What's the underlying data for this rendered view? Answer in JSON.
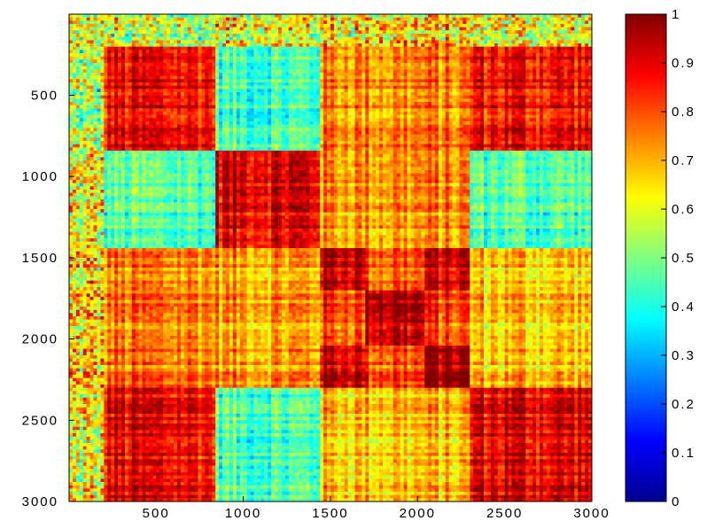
{
  "chart_data": {
    "type": "heatmap",
    "title": "",
    "xlabel": "",
    "ylabel": "",
    "xlim": [
      1,
      3000
    ],
    "ylim": [
      1,
      3000
    ],
    "y_reversed": true,
    "x_ticks": [
      "500",
      "1000",
      "1500",
      "2000",
      "2500",
      "3000"
    ],
    "y_ticks": [
      "500",
      "1000",
      "1500",
      "2000",
      "2500",
      "3000"
    ],
    "colormap": "jet",
    "colorbar": {
      "range": [
        0,
        1
      ],
      "ticks": [
        "0",
        "0.1",
        "0.2",
        "0.3",
        "0.4",
        "0.5",
        "0.6",
        "0.7",
        "0.8",
        "0.9",
        "1"
      ]
    },
    "block_boundaries": [
      1,
      200,
      850,
      1450,
      2300,
      3000
    ],
    "sub_block_boundaries": [
      1450,
      1700,
      2050,
      2300
    ],
    "block_mean_values": [
      [
        0.55,
        0.55,
        0.6,
        0.65,
        0.6
      ],
      [
        0.55,
        0.88,
        0.45,
        0.75,
        0.88
      ],
      [
        0.6,
        0.45,
        0.9,
        0.72,
        0.45
      ],
      [
        0.65,
        0.75,
        0.72,
        0.9,
        0.68
      ],
      [
        0.6,
        0.88,
        0.45,
        0.68,
        0.9
      ]
    ],
    "sub_block_mean_values": [
      [
        0.95,
        0.8,
        0.92
      ],
      [
        0.8,
        0.95,
        0.8
      ],
      [
        0.92,
        0.8,
        0.97
      ]
    ]
  }
}
